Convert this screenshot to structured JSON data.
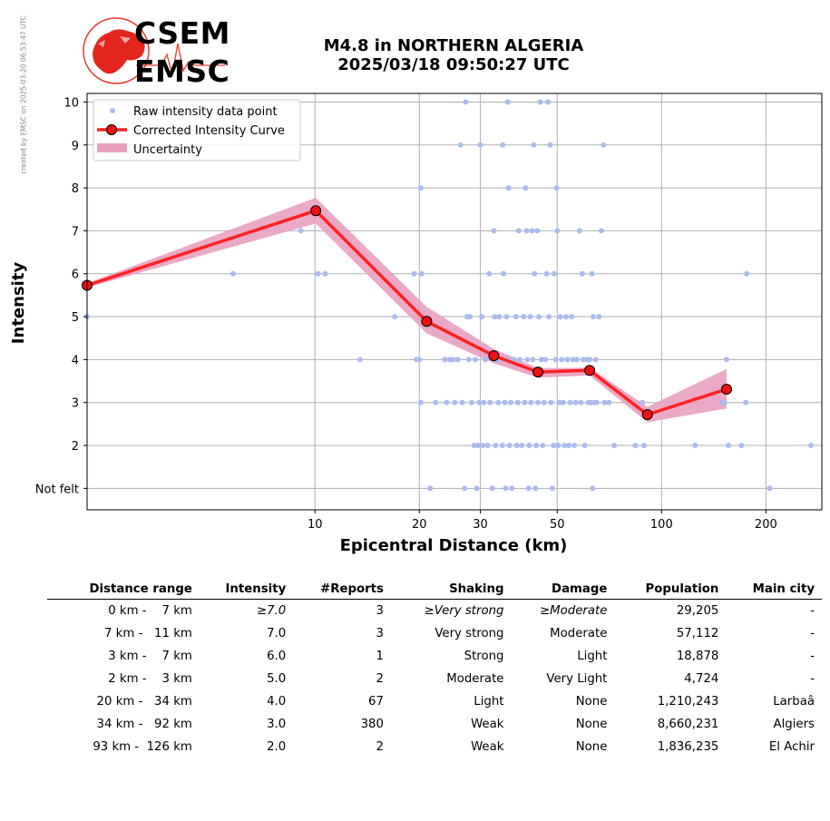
{
  "watermark": "created by EMSC on 2025-03-20 06:53:47 UTC",
  "logo": {
    "line1": "CSEM",
    "line2": "EMSC"
  },
  "header": {
    "title_line1": "M4.8 in NORTHERN ALGERIA",
    "title_line2": "2025/03/18 09:50:27 UTC"
  },
  "chart_data": {
    "type": "scatter",
    "xlabel": "Epicentral Distance (km)",
    "ylabel": "Intensity",
    "x_scale": "log",
    "xlim": [
      2.2,
      290
    ],
    "ylim": [
      0.5,
      10.2
    ],
    "x_ticks": [
      10,
      20,
      30,
      50,
      100,
      200
    ],
    "y_tick_labels": [
      "Not felt",
      "2",
      "3",
      "4",
      "5",
      "6",
      "7",
      "8",
      "9",
      "10"
    ],
    "y_ticks": [
      1,
      2,
      3,
      4,
      5,
      6,
      7,
      8,
      9,
      10
    ],
    "grid": true,
    "legend_position": "top-left",
    "legend": [
      "Raw intensity data point",
      "Corrected Intensity Curve",
      "Uncertainty"
    ],
    "colors": {
      "raw": "#aabbee",
      "curve": "#ff2222",
      "marker": "#ee1111",
      "band": "#e8a0c0"
    },
    "series": [
      {
        "name": "Raw intensity data point",
        "points": [
          [
            2.2,
            5
          ],
          [
            5.8,
            6
          ],
          [
            9.1,
            7
          ],
          [
            10.2,
            6
          ],
          [
            10.7,
            6
          ],
          [
            13.5,
            4
          ],
          [
            17,
            5
          ],
          [
            19.3,
            6
          ],
          [
            19.6,
            4
          ],
          [
            20,
            4
          ],
          [
            20.2,
            8
          ],
          [
            20.3,
            6
          ],
          [
            20.2,
            3
          ],
          [
            21.5,
            1
          ],
          [
            22.3,
            3
          ],
          [
            23.7,
            4
          ],
          [
            24,
            3
          ],
          [
            24.5,
            4
          ],
          [
            25,
            4
          ],
          [
            25.3,
            3
          ],
          [
            25.8,
            4
          ],
          [
            26.3,
            9
          ],
          [
            26.6,
            3
          ],
          [
            27,
            1
          ],
          [
            27.2,
            10
          ],
          [
            27.5,
            5
          ],
          [
            27.8,
            4
          ],
          [
            28,
            5
          ],
          [
            28.3,
            3
          ],
          [
            28.8,
            2
          ],
          [
            29,
            4
          ],
          [
            29.3,
            1
          ],
          [
            29.5,
            2
          ],
          [
            29.8,
            3
          ],
          [
            30,
            9
          ],
          [
            30.3,
            5
          ],
          [
            30.5,
            2
          ],
          [
            30.7,
            3
          ],
          [
            31,
            4
          ],
          [
            31.5,
            2
          ],
          [
            31.8,
            6
          ],
          [
            32,
            3
          ],
          [
            32.5,
            1
          ],
          [
            32.8,
            7
          ],
          [
            33,
            5
          ],
          [
            33.2,
            2
          ],
          [
            33.5,
            4
          ],
          [
            33.8,
            3
          ],
          [
            34,
            5
          ],
          [
            34.3,
            4
          ],
          [
            34.7,
            2
          ],
          [
            34.8,
            9
          ],
          [
            35,
            6
          ],
          [
            35.3,
            3
          ],
          [
            35.5,
            1
          ],
          [
            35.7,
            5
          ],
          [
            35.9,
            4
          ],
          [
            36,
            10
          ],
          [
            36.2,
            8
          ],
          [
            36.4,
            2
          ],
          [
            36.7,
            3
          ],
          [
            37,
            1
          ],
          [
            37.5,
            4
          ],
          [
            38,
            5
          ],
          [
            38.2,
            2
          ],
          [
            38.5,
            3
          ],
          [
            38.7,
            7
          ],
          [
            39,
            4
          ],
          [
            39.5,
            2
          ],
          [
            40,
            5
          ],
          [
            40.3,
            3
          ],
          [
            40.5,
            8
          ],
          [
            40.8,
            7
          ],
          [
            41,
            4
          ],
          [
            41.3,
            1
          ],
          [
            41.5,
            2
          ],
          [
            41.8,
            5
          ],
          [
            42,
            3
          ],
          [
            42.3,
            7
          ],
          [
            42.5,
            4
          ],
          [
            42.8,
            9
          ],
          [
            43,
            6
          ],
          [
            43.3,
            1
          ],
          [
            43.5,
            2
          ],
          [
            43.8,
            7
          ],
          [
            44,
            3
          ],
          [
            44.3,
            5
          ],
          [
            44.7,
            10
          ],
          [
            45,
            4
          ],
          [
            45.4,
            2
          ],
          [
            45.8,
            3
          ],
          [
            46.2,
            4
          ],
          [
            46.6,
            6
          ],
          [
            47,
            10
          ],
          [
            47.3,
            5
          ],
          [
            47.7,
            9
          ],
          [
            48,
            3
          ],
          [
            48.4,
            1
          ],
          [
            48.8,
            2
          ],
          [
            49,
            6
          ],
          [
            49.5,
            4
          ],
          [
            49.8,
            8
          ],
          [
            50,
            7
          ],
          [
            50.3,
            2
          ],
          [
            50.7,
            3
          ],
          [
            51,
            5
          ],
          [
            51.5,
            4
          ],
          [
            52,
            3
          ],
          [
            52.5,
            2
          ],
          [
            53,
            5
          ],
          [
            53.5,
            4
          ],
          [
            54,
            2
          ],
          [
            54.5,
            3
          ],
          [
            55,
            5
          ],
          [
            55.5,
            4
          ],
          [
            56,
            2
          ],
          [
            56.5,
            3
          ],
          [
            57,
            4
          ],
          [
            58,
            7
          ],
          [
            58.5,
            3
          ],
          [
            59,
            6
          ],
          [
            59.5,
            4
          ],
          [
            60,
            2
          ],
          [
            61,
            4
          ],
          [
            61.5,
            3
          ],
          [
            62,
            4
          ],
          [
            62.5,
            3
          ],
          [
            63,
            6
          ],
          [
            63.2,
            1
          ],
          [
            63.5,
            5
          ],
          [
            64,
            3
          ],
          [
            64.5,
            4
          ],
          [
            65,
            3
          ],
          [
            66,
            5
          ],
          [
            67,
            7
          ],
          [
            68,
            9
          ],
          [
            68.5,
            3
          ],
          [
            70.5,
            3
          ],
          [
            73,
            2
          ],
          [
            84,
            2
          ],
          [
            88,
            3
          ],
          [
            89,
            2
          ],
          [
            125,
            2
          ],
          [
            150,
            3
          ],
          [
            152,
            3
          ],
          [
            154,
            4
          ],
          [
            156,
            2
          ],
          [
            170,
            2
          ],
          [
            175,
            3
          ],
          [
            176,
            6
          ],
          [
            205,
            1
          ],
          [
            270,
            2
          ]
        ]
      },
      {
        "name": "Corrected Intensity Curve",
        "points": [
          [
            2.2,
            5.73
          ],
          [
            10.05,
            7.47
          ],
          [
            21,
            4.89
          ],
          [
            32.8,
            4.09
          ],
          [
            44,
            3.71
          ],
          [
            62,
            3.75
          ],
          [
            91,
            2.72
          ],
          [
            154,
            3.31
          ]
        ]
      },
      {
        "name": "Uncertainty",
        "upper": [
          5.78,
          7.77,
          5.23,
          4.25,
          3.8,
          3.81,
          2.9,
          3.78
        ],
        "lower": [
          5.68,
          7.17,
          4.61,
          3.91,
          3.58,
          3.63,
          2.54,
          2.86
        ]
      }
    ]
  },
  "table": {
    "headers": [
      "Distance range",
      "Intensity",
      "#Reports",
      "Shaking",
      "Damage",
      "Population",
      "Main city"
    ],
    "rows": [
      [
        "  0 km -    7 km",
        "≥7.0",
        "3",
        "≥Very strong",
        "≥Moderate",
        "29,205",
        "-"
      ],
      [
        "  7 km -   11 km",
        "7.0",
        "3",
        "Very strong",
        "Moderate",
        "57,112",
        "-"
      ],
      [
        "  3 km -    7 km",
        "6.0",
        "1",
        "Strong",
        "Light",
        "18,878",
        "-"
      ],
      [
        "  2 km -    3 km",
        "5.0",
        "2",
        "Moderate",
        "Very Light",
        "4,724",
        "-"
      ],
      [
        "20 km -   34 km",
        "4.0",
        "67",
        "Light",
        "None",
        "1,210,243",
        "Larbaâ"
      ],
      [
        "34 km -   92 km",
        "3.0",
        "380",
        "Weak",
        "None",
        "8,660,231",
        "Algiers"
      ],
      [
        "93 km -  126 km",
        "2.0",
        "2",
        "Weak",
        "None",
        "1,836,235",
        "El Achir"
      ]
    ]
  }
}
